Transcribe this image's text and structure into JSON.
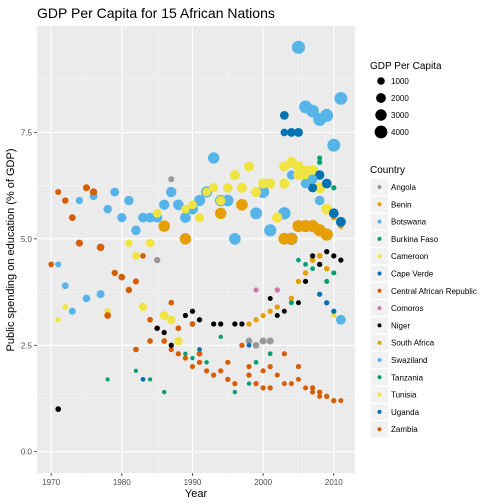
{
  "chart_data": {
    "type": "scatter",
    "title": "GDP Per Capita for 15 African Nations",
    "xlabel": "Year",
    "ylabel": "Public spending on education (% of GDP)",
    "xlim": [
      1968,
      2013
    ],
    "ylim": [
      -0.5,
      10.0
    ],
    "x_ticks": [
      1970,
      1980,
      1990,
      2000,
      2010
    ],
    "y_ticks": [
      0.0,
      2.5,
      5.0,
      7.5
    ],
    "y_tick_labels": [
      "0.0",
      "2.5",
      "5.0",
      "7.5"
    ],
    "grid": true,
    "legend_size": {
      "title": "GDP Per Capita",
      "entries": [
        {
          "label": "1000",
          "value": 1000
        },
        {
          "label": "2000",
          "value": 2000
        },
        {
          "label": "3000",
          "value": 3000
        },
        {
          "label": "4000",
          "value": 4000
        }
      ]
    },
    "legend_color_title": "Country",
    "series": [
      {
        "name": "Angola",
        "color": "#999999",
        "points": [
          [
            1985,
            4.5,
            600
          ],
          [
            1987,
            6.4,
            500
          ],
          [
            1998,
            2.6,
            700
          ],
          [
            1999,
            2.5,
            700
          ],
          [
            2000,
            2.6,
            800
          ],
          [
            2001,
            2.6,
            800
          ]
        ]
      },
      {
        "name": "Benin",
        "color": "#E69F00",
        "points": [
          [
            1998,
            3.0,
            300
          ],
          [
            1999,
            3.1,
            300
          ],
          [
            2000,
            3.2,
            300
          ],
          [
            2001,
            3.3,
            300
          ],
          [
            2002,
            3.4,
            300
          ],
          [
            2004,
            3.6,
            350
          ],
          [
            2005,
            4.0,
            350
          ],
          [
            2006,
            4.2,
            350
          ],
          [
            2007,
            4.5,
            400
          ],
          [
            2008,
            4.6,
            400
          ],
          [
            2009,
            4.3,
            400
          ],
          [
            2010,
            5.5,
            400
          ],
          [
            2011,
            5.3,
            400
          ]
        ]
      },
      {
        "name": "Botswana",
        "color": "#56B4E9",
        "points": [
          [
            1971,
            4.4,
            500
          ],
          [
            1972,
            3.9,
            700
          ],
          [
            1973,
            3.3,
            800
          ],
          [
            1974,
            5.9,
            900
          ],
          [
            1975,
            3.6,
            1000
          ],
          [
            1976,
            6.0,
            1100
          ],
          [
            1977,
            3.7,
            1200
          ],
          [
            1978,
            5.7,
            1400
          ],
          [
            1979,
            6.1,
            1500
          ],
          [
            1980,
            5.5,
            1700
          ],
          [
            1981,
            5.9,
            1800
          ],
          [
            1982,
            5.2,
            1900
          ],
          [
            1983,
            5.5,
            2000
          ],
          [
            1984,
            5.5,
            2100
          ],
          [
            1985,
            5.5,
            2200
          ],
          [
            1986,
            5.8,
            2300
          ],
          [
            1987,
            6.1,
            2400
          ],
          [
            1988,
            5.8,
            2500
          ],
          [
            1989,
            5.5,
            2500
          ],
          [
            1990,
            5.7,
            2700
          ],
          [
            1991,
            5.9,
            2800
          ],
          [
            1992,
            6.1,
            2900
          ],
          [
            1993,
            6.9,
            3000
          ],
          [
            1994,
            5.9,
            3000
          ],
          [
            1995,
            5.9,
            3100
          ],
          [
            1996,
            5.0,
            3200
          ],
          [
            1999,
            5.6,
            3300
          ],
          [
            2000,
            6.1,
            3400
          ],
          [
            2001,
            5.2,
            3500
          ],
          [
            2003,
            5.6,
            3700
          ],
          [
            2004,
            5.0,
            3800
          ],
          [
            2005,
            9.5,
            4300
          ],
          [
            2006,
            8.1,
            4000
          ],
          [
            2007,
            8.0,
            3900
          ],
          [
            2008,
            7.8,
            4000
          ],
          [
            2009,
            7.9,
            4100
          ],
          [
            2010,
            7.2,
            4100
          ],
          [
            2011,
            8.3,
            4000
          ]
        ]
      },
      {
        "name": "Burkina Faso",
        "color": "#009E73",
        "points": [
          [
            1978,
            1.7,
            100
          ],
          [
            1982,
            1.9,
            100
          ],
          [
            1984,
            1.7,
            100
          ],
          [
            1986,
            1.4,
            150
          ],
          [
            1989,
            2.3,
            150
          ],
          [
            1990,
            2.2,
            150
          ],
          [
            1992,
            2.1,
            150
          ],
          [
            1994,
            2.7,
            150
          ],
          [
            1996,
            1.4,
            150
          ],
          [
            1998,
            1.6,
            150
          ],
          [
            2005,
            4.5,
            200
          ],
          [
            2006,
            4.4,
            200
          ],
          [
            2007,
            4.3,
            200
          ],
          [
            2008,
            6.9,
            250
          ],
          [
            2009,
            4.0,
            250
          ],
          [
            2010,
            4.2,
            250
          ]
        ]
      },
      {
        "name": "Cameroon",
        "color": "#F0E442",
        "points": [
          [
            1971,
            3.1,
            300
          ],
          [
            1972,
            3.4,
            400
          ],
          [
            1978,
            3.3,
            600
          ],
          [
            1981,
            4.9,
            900
          ],
          [
            1982,
            4.6,
            1100
          ],
          [
            1983,
            3.4,
            1300
          ],
          [
            1984,
            4.9,
            1400
          ],
          [
            1985,
            5.6,
            1500
          ],
          [
            1986,
            3.2,
            1500
          ],
          [
            1987,
            3.1,
            1400
          ],
          [
            1988,
            2.6,
            1300
          ],
          [
            1989,
            5.7,
            1400
          ],
          [
            1990,
            5.8,
            1500
          ],
          [
            1991,
            5.5,
            1600
          ],
          [
            1992,
            6.1,
            1500
          ],
          [
            1993,
            6.2,
            1700
          ],
          [
            1994,
            5.9,
            1800
          ],
          [
            1995,
            6.2,
            2000
          ],
          [
            1996,
            6.5,
            2200
          ],
          [
            1997,
            6.2,
            2100
          ],
          [
            1998,
            6.7,
            2200
          ],
          [
            1999,
            6.1,
            2200
          ],
          [
            2000,
            6.3,
            2200
          ],
          [
            2001,
            6.3,
            2300
          ],
          [
            2002,
            5.5,
            2300
          ],
          [
            2003,
            6.3,
            2400
          ],
          [
            2004,
            6.8,
            2500
          ],
          [
            2005,
            6.7,
            2600
          ],
          [
            2006,
            6.5,
            2600
          ],
          [
            2007,
            6.6,
            2700
          ],
          [
            2008,
            6.2,
            2700
          ],
          [
            2009,
            5.7,
            2700
          ],
          [
            2010,
            3.2,
            300
          ]
        ]
      },
      {
        "name": "Cape Verde",
        "color": "#0072B2",
        "points": [
          [
            2003,
            7.9,
            1500
          ],
          [
            2004,
            7.5,
            1500
          ],
          [
            2005,
            7.5,
            1600
          ],
          [
            2006,
            6.3,
            1600
          ],
          [
            2007,
            6.2,
            1700
          ],
          [
            2008,
            6.5,
            1800
          ],
          [
            2009,
            6.3,
            2000
          ],
          [
            2010,
            5.6,
            2000
          ],
          [
            2011,
            5.4,
            2100
          ]
        ]
      },
      {
        "name": "Central African Republic",
        "color": "#D55E00",
        "points": [
          [
            1970,
            4.4,
            400
          ],
          [
            1971,
            6.1,
            500
          ],
          [
            1972,
            5.9,
            600
          ],
          [
            1973,
            5.5,
            700
          ],
          [
            1974,
            4.9,
            800
          ],
          [
            1975,
            6.2,
            800
          ],
          [
            1976,
            6.1,
            900
          ],
          [
            1977,
            4.8,
            1000
          ],
          [
            1978,
            3.2,
            700
          ],
          [
            1979,
            4.2,
            600
          ],
          [
            1980,
            4.1,
            700
          ],
          [
            1981,
            3.8,
            600
          ],
          [
            1982,
            4.0,
            500
          ],
          [
            1983,
            4.6,
            400
          ],
          [
            1984,
            3.1,
            400
          ],
          [
            1985,
            2.9,
            400
          ],
          [
            1986,
            2.6,
            400
          ],
          [
            1987,
            2.4,
            300
          ],
          [
            1988,
            2.3,
            300
          ],
          [
            1989,
            2.2,
            300
          ],
          [
            1990,
            2.0,
            300
          ],
          [
            1991,
            2.1,
            300
          ],
          [
            1992,
            1.9,
            300
          ],
          [
            1993,
            1.8,
            300
          ],
          [
            1994,
            1.9,
            300
          ],
          [
            1995,
            1.7,
            300
          ],
          [
            1996,
            1.6,
            300
          ],
          [
            1998,
            1.8,
            300
          ],
          [
            1999,
            1.6,
            300
          ],
          [
            2000,
            1.9,
            300
          ],
          [
            2001,
            1.5,
            300
          ],
          [
            2002,
            1.8,
            250
          ],
          [
            2003,
            1.6,
            250
          ],
          [
            2004,
            1.6,
            250
          ],
          [
            2005,
            1.7,
            250
          ],
          [
            2006,
            1.5,
            250
          ],
          [
            2007,
            1.4,
            250
          ],
          [
            2008,
            1.3,
            250
          ],
          [
            2009,
            1.3,
            250
          ],
          [
            2010,
            1.2,
            250
          ],
          [
            2011,
            1.2,
            250
          ]
        ]
      },
      {
        "name": "Comoros",
        "color": "#CC79A7",
        "points": [
          [
            1999,
            3.8,
            300
          ],
          [
            2002,
            3.8,
            350
          ]
        ]
      },
      {
        "name": "Niger",
        "color": "#000000",
        "points": [
          [
            1971,
            1.0,
            400
          ],
          [
            1985,
            2.9,
            300
          ],
          [
            1986,
            2.8,
            300
          ],
          [
            1987,
            2.5,
            300
          ],
          [
            1989,
            3.2,
            300
          ],
          [
            1990,
            3.3,
            300
          ],
          [
            1991,
            3.1,
            300
          ],
          [
            1993,
            3.0,
            300
          ],
          [
            1994,
            3.0,
            300
          ],
          [
            1996,
            3.0,
            300
          ],
          [
            1997,
            3.0,
            300
          ],
          [
            2001,
            3.6,
            250
          ],
          [
            2002,
            3.2,
            250
          ],
          [
            2003,
            3.3,
            250
          ],
          [
            2005,
            3.5,
            250
          ],
          [
            2006,
            4.0,
            300
          ],
          [
            2007,
            4.6,
            300
          ],
          [
            2008,
            4.4,
            300
          ],
          [
            2009,
            4.7,
            300
          ],
          [
            2010,
            4.6,
            300
          ],
          [
            2011,
            4.5,
            300
          ]
        ]
      },
      {
        "name": "South Africa",
        "color": "#E69F00",
        "points": [
          [
            1986,
            5.3,
            3000
          ],
          [
            1989,
            5.0,
            3000
          ],
          [
            1994,
            5.6,
            3000
          ],
          [
            1997,
            5.8,
            3200
          ],
          [
            2003,
            5.0,
            3300
          ],
          [
            2004,
            5.0,
            3300
          ],
          [
            2005,
            5.3,
            3400
          ],
          [
            2006,
            5.3,
            3500
          ],
          [
            2007,
            5.3,
            3600
          ],
          [
            2008,
            5.2,
            3600
          ],
          [
            2009,
            5.1,
            3600
          ]
        ]
      },
      {
        "name": "Swaziland",
        "color": "#56B4E9",
        "points": [
          [
            2004,
            6.5,
            1700
          ],
          [
            2005,
            6.5,
            1800
          ],
          [
            2006,
            6.3,
            1800
          ],
          [
            2007,
            6.4,
            1900
          ],
          [
            2008,
            5.9,
            1900
          ],
          [
            2011,
            3.1,
            2000
          ]
        ]
      },
      {
        "name": "Tanzania",
        "color": "#009E73",
        "points": [
          [
            1999,
            2.1,
            200
          ],
          [
            2001,
            2.3,
            200
          ],
          [
            2004,
            3.5,
            250
          ],
          [
            2008,
            6.8,
            300
          ],
          [
            2010,
            6.2,
            300
          ]
        ]
      },
      {
        "name": "Tunisia",
        "color": "#F0E442",
        "points": [
          [
            2003,
            6.7,
            2200
          ],
          [
            2004,
            6.8,
            2300
          ],
          [
            2005,
            6.5,
            2300
          ],
          [
            2006,
            6.6,
            2400
          ]
        ]
      },
      {
        "name": "Uganda",
        "color": "#0072B2",
        "points": [
          [
            1983,
            1.7,
            200
          ],
          [
            1991,
            2.4,
            200
          ],
          [
            1998,
            2.5,
            200
          ],
          [
            2003,
            7.5,
            1000
          ],
          [
            2008,
            3.7,
            300
          ],
          [
            2009,
            3.5,
            300
          ],
          [
            2010,
            3.3,
            300
          ]
        ]
      },
      {
        "name": "Zambia",
        "color": "#D55E00",
        "points": [
          [
            1982,
            2.4,
            400
          ],
          [
            1984,
            2.6,
            400
          ],
          [
            1987,
            3.5,
            400
          ],
          [
            1988,
            2.9,
            400
          ],
          [
            1990,
            3.0,
            400
          ],
          [
            1991,
            2.3,
            400
          ],
          [
            1995,
            2.1,
            300
          ],
          [
            1997,
            2.5,
            300
          ],
          [
            1998,
            2.0,
            300
          ],
          [
            2000,
            1.5,
            300
          ],
          [
            2001,
            2.0,
            300
          ],
          [
            2003,
            2.3,
            300
          ],
          [
            2005,
            2.0,
            300
          ],
          [
            2007,
            1.5,
            300
          ],
          [
            2008,
            1.4,
            300
          ],
          [
            2009,
            1.3,
            300
          ],
          [
            2010,
            1.2,
            300
          ]
        ]
      }
    ]
  }
}
